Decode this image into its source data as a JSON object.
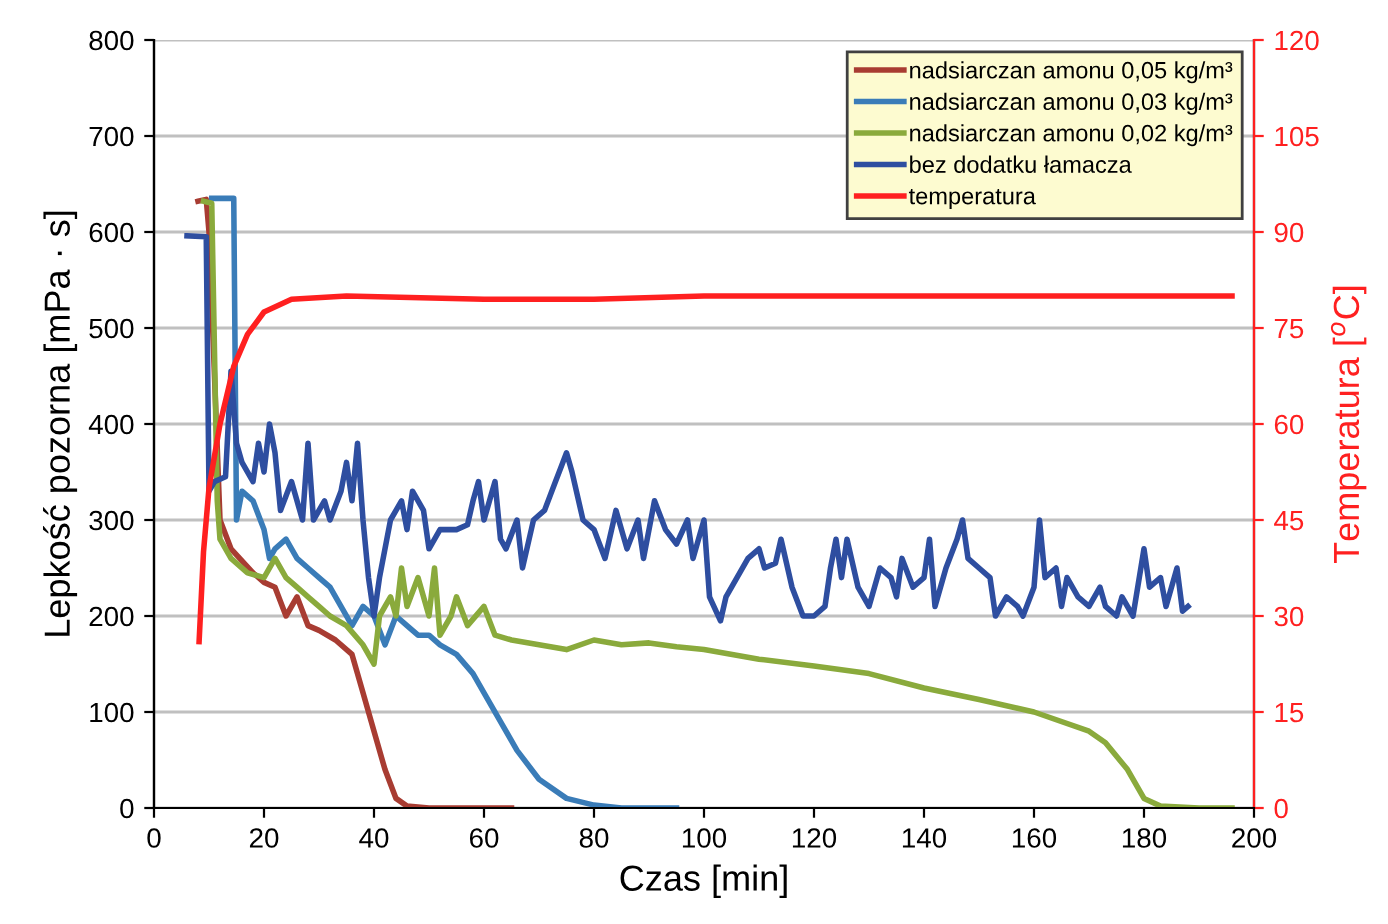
{
  "chart_data": {
    "type": "line",
    "xlabel": "Czas [min]",
    "ylabel": "Lepkość pozorna [mPa · s]",
    "y2label": "Temperatura [$^{o}$C]",
    "xlim": [
      0,
      200
    ],
    "xticks": [
      0,
      20,
      40,
      60,
      80,
      100,
      120,
      140,
      160,
      180,
      200
    ],
    "ylim": [
      0,
      800
    ],
    "yticks": [
      0,
      100,
      200,
      300,
      400,
      500,
      600,
      700,
      800
    ],
    "y2lim": [
      0,
      120
    ],
    "y2ticks": [
      0,
      15,
      30,
      45,
      60,
      75,
      90,
      105,
      120
    ],
    "grid": "y",
    "legend": "top right",
    "marker": "none",
    "line_style": "solid",
    "series": [
      {
        "name": "nadsiarczan amonu 0,05 kg/m³",
        "color": "#a83c32",
        "x": [
          8,
          9.5,
          10,
          12,
          14,
          18,
          20,
          22,
          24,
          26,
          28,
          30,
          33,
          36,
          38,
          40,
          42,
          44,
          46,
          50,
          65
        ],
        "values": [
          632,
          634,
          600,
          300,
          270,
          245,
          235,
          230,
          200,
          220,
          190,
          185,
          175,
          160,
          120,
          80,
          40,
          10,
          2,
          0,
          0
        ]
      },
      {
        "name": "nadsiarczan amonu 0,03 kg/m³",
        "color": "#3a7cb8",
        "x": [
          10.5,
          14.5,
          15,
          16,
          18,
          20,
          21,
          22,
          24,
          26,
          28,
          30,
          32,
          34,
          36,
          38,
          40,
          42,
          44,
          46,
          48,
          50,
          52,
          55,
          58,
          60,
          63,
          66,
          70,
          75,
          80,
          85,
          95
        ],
        "values": [
          635,
          635,
          300,
          330,
          320,
          290,
          260,
          270,
          280,
          260,
          250,
          240,
          230,
          210,
          190,
          210,
          200,
          170,
          200,
          190,
          180,
          180,
          170,
          160,
          140,
          120,
          90,
          60,
          30,
          10,
          3,
          0,
          0
        ]
      },
      {
        "name": "nadsiarczan amonu 0,02 kg/m³",
        "color": "#8aaa3c",
        "x": [
          9,
          10.5,
          11.5,
          12,
          14,
          17,
          20,
          22,
          24,
          26,
          28,
          30,
          32,
          35,
          38,
          40,
          41,
          43,
          44,
          45,
          46,
          48,
          50,
          51,
          52,
          54,
          55,
          57,
          60,
          62,
          65,
          70,
          75,
          80,
          85,
          90,
          95,
          100,
          110,
          120,
          130,
          140,
          150,
          160,
          170,
          173,
          177,
          180,
          183,
          190,
          196
        ],
        "values": [
          632,
          630,
          320,
          280,
          260,
          245,
          240,
          260,
          240,
          230,
          220,
          210,
          200,
          190,
          170,
          150,
          200,
          220,
          200,
          250,
          210,
          240,
          200,
          250,
          180,
          200,
          220,
          190,
          210,
          180,
          175,
          170,
          165,
          175,
          170,
          172,
          168,
          165,
          155,
          148,
          140,
          125,
          113,
          100,
          80,
          68,
          40,
          10,
          2,
          0,
          0
        ]
      },
      {
        "name": "bez dodatku łamacza",
        "color": "#2e4ea0",
        "x": [
          6,
          9.5,
          10,
          11,
          13,
          14,
          15,
          16,
          18,
          19,
          20,
          21,
          22,
          23,
          25,
          27,
          28,
          29,
          31,
          32,
          34,
          35,
          36,
          37,
          38,
          39,
          40,
          41,
          43,
          45,
          46,
          47,
          49,
          50,
          52,
          55,
          57,
          58,
          59,
          60,
          62,
          63,
          64,
          66,
          67,
          69,
          71,
          73,
          74,
          75,
          76,
          78,
          80,
          82,
          84,
          86,
          88,
          89,
          91,
          93,
          95,
          97,
          98,
          100,
          101,
          103,
          104,
          106,
          108,
          110,
          111,
          113,
          114,
          116,
          118,
          120,
          122,
          123,
          124,
          125,
          126,
          128,
          130,
          132,
          134,
          135,
          136,
          138,
          140,
          141,
          142,
          144,
          146,
          147,
          148,
          150,
          152,
          153,
          155,
          157,
          158,
          160,
          161,
          162,
          164,
          165,
          166,
          168,
          170,
          172,
          173,
          175,
          176,
          178,
          180,
          181,
          183,
          184,
          186,
          187,
          188
        ],
        "values": [
          596,
          595,
          330,
          340,
          345,
          455,
          380,
          360,
          340,
          380,
          350,
          400,
          370,
          310,
          340,
          300,
          380,
          300,
          320,
          300,
          330,
          360,
          320,
          380,
          300,
          240,
          200,
          240,
          300,
          320,
          290,
          330,
          310,
          270,
          290,
          290,
          295,
          320,
          340,
          300,
          340,
          280,
          270,
          300,
          250,
          300,
          310,
          340,
          355,
          370,
          350,
          300,
          290,
          260,
          310,
          270,
          300,
          260,
          320,
          290,
          275,
          300,
          260,
          300,
          220,
          195,
          220,
          240,
          260,
          270,
          250,
          255,
          280,
          230,
          200,
          200,
          210,
          250,
          280,
          240,
          280,
          230,
          210,
          250,
          240,
          220,
          260,
          230,
          240,
          280,
          210,
          250,
          280,
          300,
          260,
          250,
          240,
          200,
          220,
          210,
          200,
          230,
          300,
          240,
          250,
          210,
          240,
          220,
          210,
          230,
          210,
          200,
          220,
          200,
          270,
          230,
          240,
          210,
          250,
          205,
          210
        ]
      },
      {
        "name": "temperatura",
        "color": "#ff2020",
        "axis": "y2",
        "x": [
          8.2,
          9,
          10,
          12,
          14.5,
          17,
          20,
          25,
          35,
          60,
          80,
          100,
          140,
          196
        ],
        "values": [
          26,
          40,
          50,
          60,
          69,
          74,
          77.5,
          79.5,
          80,
          79.5,
          79.5,
          80,
          80,
          80
        ]
      }
    ]
  }
}
